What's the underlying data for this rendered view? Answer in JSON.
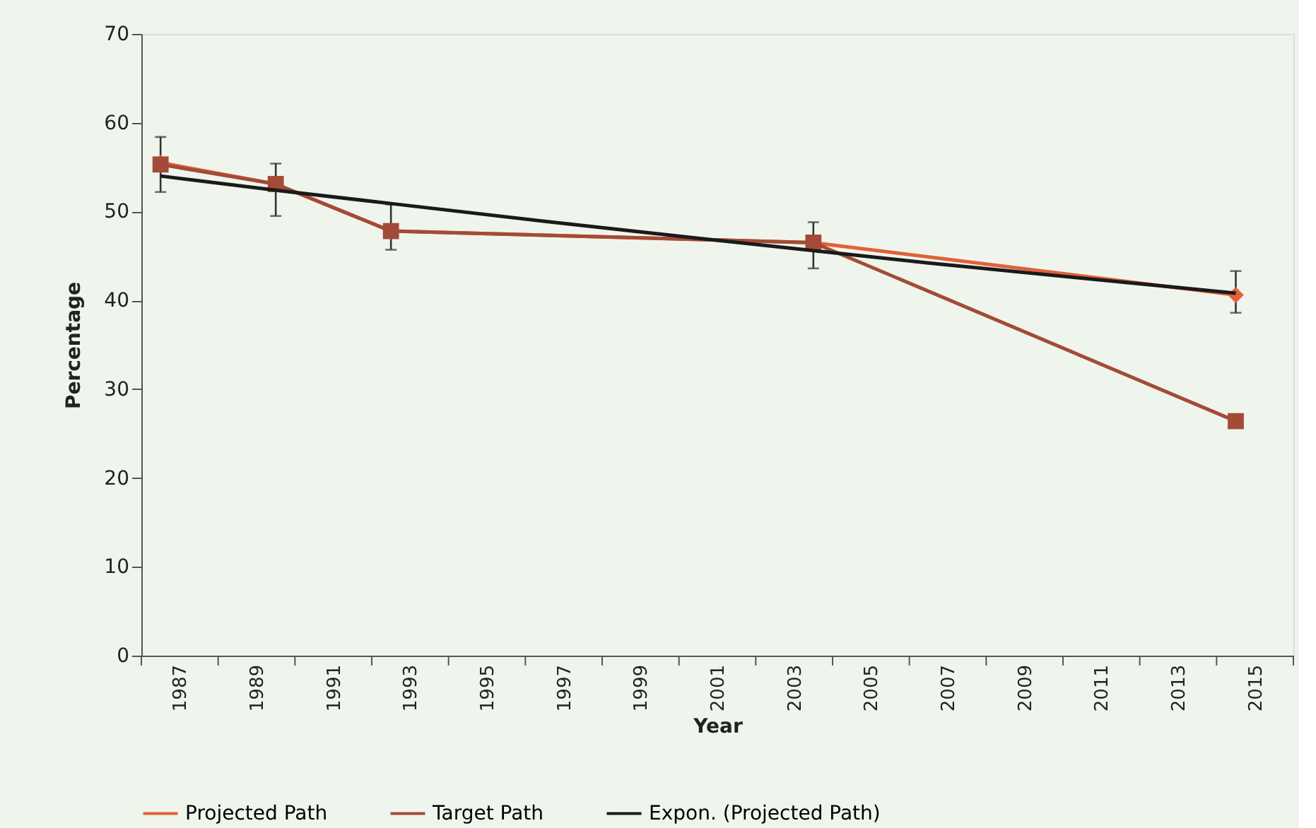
{
  "chart_data": {
    "type": "line",
    "xlabel": "Year",
    "ylabel": "Percentage",
    "x": [
      1987,
      1990,
      1993,
      2004,
      2015
    ],
    "xlim": [
      1986.5,
      2016.5
    ],
    "xticks": [
      {
        "value": 1986.5,
        "label": null
      },
      {
        "value": 1987.5,
        "label": "1987"
      },
      {
        "value": 1988.5,
        "label": null
      },
      {
        "value": 1989.5,
        "label": "1989"
      },
      {
        "value": 1990.5,
        "label": null
      },
      {
        "value": 1991.5,
        "label": "1991"
      },
      {
        "value": 1992.5,
        "label": null
      },
      {
        "value": 1993.5,
        "label": "1993"
      },
      {
        "value": 1994.5,
        "label": null
      },
      {
        "value": 1995.5,
        "label": "1995"
      },
      {
        "value": 1996.5,
        "label": null
      },
      {
        "value": 1997.5,
        "label": "1997"
      },
      {
        "value": 1998.5,
        "label": null
      },
      {
        "value": 1999.5,
        "label": "1999"
      },
      {
        "value": 2000.5,
        "label": null
      },
      {
        "value": 2001.5,
        "label": "2001"
      },
      {
        "value": 2002.5,
        "label": null
      },
      {
        "value": 2003.5,
        "label": "2003"
      },
      {
        "value": 2004.5,
        "label": null
      },
      {
        "value": 2005.5,
        "label": "2005"
      },
      {
        "value": 2006.5,
        "label": null
      },
      {
        "value": 2007.5,
        "label": "2007"
      },
      {
        "value": 2008.5,
        "label": null
      },
      {
        "value": 2009.5,
        "label": "2009"
      },
      {
        "value": 2010.5,
        "label": null
      },
      {
        "value": 2011.5,
        "label": "2011"
      },
      {
        "value": 2012.5,
        "label": null
      },
      {
        "value": 2013.5,
        "label": "2013"
      },
      {
        "value": 2014.5,
        "label": null
      },
      {
        "value": 2015.5,
        "label": "2015"
      },
      {
        "value": 2016.5,
        "label": null
      }
    ],
    "ylim": [
      0,
      70
    ],
    "yticks": [
      0,
      10,
      20,
      30,
      40,
      50,
      60,
      70
    ],
    "grid": false,
    "legend": "bottom",
    "series": [
      {
        "name": "Projected Path",
        "color": "#e2603a",
        "marker": "diamond",
        "values": [
          55.5,
          53.1,
          47.8,
          46.5,
          40.6
        ],
        "errors": [
          [
            52.2,
            58.4
          ],
          [
            49.5,
            55.4
          ],
          [
            45.7,
            50.8
          ],
          [
            43.6,
            48.8
          ],
          [
            38.6,
            43.3
          ]
        ]
      },
      {
        "name": "Target Path",
        "color": "#a34b38",
        "marker": "square",
        "values": [
          55.3,
          53.1,
          47.8,
          46.5,
          26.4
        ]
      },
      {
        "name": "Expon. (Projected Path)",
        "color": "#1a1a1a",
        "marker": "none",
        "x": [
          1987,
          1990,
          1993,
          1997,
          2001,
          2004,
          2007,
          2011,
          2015
        ],
        "values": [
          54.0,
          52.4,
          50.9,
          48.9,
          47.0,
          45.6,
          44.2,
          42.5,
          40.8
        ]
      }
    ]
  }
}
